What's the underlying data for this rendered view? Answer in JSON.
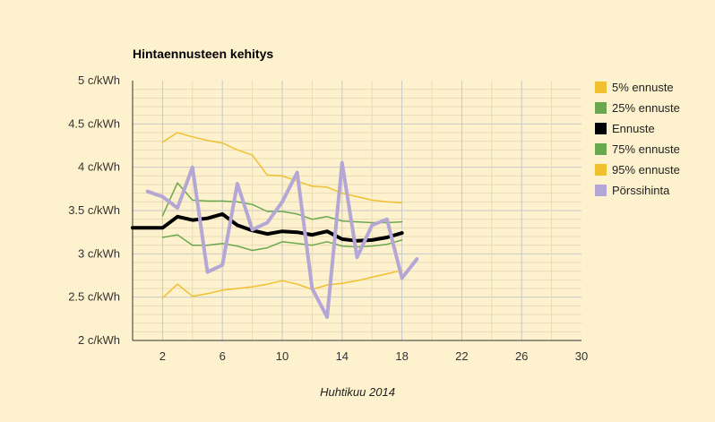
{
  "chart_data": {
    "type": "line",
    "title": "Hintaennusteen kehitys",
    "xlabel": "Huhtikuu 2014",
    "ylabel": "",
    "x_ticks": [
      2,
      6,
      10,
      14,
      18,
      22,
      26,
      30
    ],
    "y_ticks": [
      2,
      2.5,
      3,
      3.5,
      4,
      4.5,
      5
    ],
    "y_tick_labels": [
      "2 c/kWh",
      "2.5 c/kWh",
      "3 c/kWh",
      "3.5 c/kWh",
      "4 c/kWh",
      "4.5 c/kWh",
      "5 c/kWh"
    ],
    "xlim": [
      0,
      30
    ],
    "ylim": [
      2,
      5
    ],
    "grid": true,
    "legend_position": "right",
    "series": [
      {
        "name": "5% ennuste",
        "color": "#f0c030",
        "width": 1.5,
        "x": [
          2,
          3,
          4,
          5,
          6,
          7,
          8,
          9,
          10,
          11,
          12,
          13,
          14,
          15,
          16,
          17,
          18
        ],
        "y": [
          2.49,
          2.65,
          2.51,
          2.54,
          2.58,
          2.6,
          2.62,
          2.65,
          2.69,
          2.65,
          2.59,
          2.64,
          2.66,
          2.69,
          2.73,
          2.77,
          2.81
        ]
      },
      {
        "name": "25% ennuste",
        "color": "#6aa84f",
        "width": 1.5,
        "x": [
          2,
          3,
          4,
          5,
          6,
          7,
          8,
          9,
          10,
          11,
          12,
          13,
          14,
          15,
          16,
          17,
          18
        ],
        "y": [
          3.19,
          3.22,
          3.1,
          3.1,
          3.12,
          3.09,
          3.04,
          3.07,
          3.14,
          3.12,
          3.1,
          3.14,
          3.09,
          3.08,
          3.09,
          3.11,
          3.16
        ]
      },
      {
        "name": "Ennuste",
        "color": "#000000",
        "width": 4,
        "x": [
          0,
          1,
          2,
          3,
          4,
          5,
          6,
          7,
          8,
          9,
          10,
          11,
          12,
          13,
          14,
          15,
          16,
          17,
          18
        ],
        "y": [
          3.3,
          3.3,
          3.3,
          3.43,
          3.39,
          3.41,
          3.46,
          3.33,
          3.27,
          3.23,
          3.26,
          3.25,
          3.22,
          3.26,
          3.17,
          3.15,
          3.16,
          3.19,
          3.24
        ]
      },
      {
        "name": "75% ennuste",
        "color": "#6aa84f",
        "width": 1.5,
        "x": [
          2,
          3,
          4,
          5,
          6,
          7,
          8,
          9,
          10,
          11,
          12,
          13,
          14,
          15,
          16,
          17,
          18
        ],
        "y": [
          3.44,
          3.82,
          3.62,
          3.61,
          3.61,
          3.6,
          3.57,
          3.49,
          3.49,
          3.46,
          3.4,
          3.43,
          3.38,
          3.37,
          3.36,
          3.36,
          3.37
        ]
      },
      {
        "name": "95% ennuste",
        "color": "#f0c030",
        "width": 1.5,
        "x": [
          2,
          3,
          4,
          5,
          6,
          7,
          8,
          9,
          10,
          11,
          12,
          13,
          14,
          15,
          16,
          17,
          18
        ],
        "y": [
          4.29,
          4.4,
          4.35,
          4.31,
          4.28,
          4.2,
          4.14,
          3.91,
          3.9,
          3.84,
          3.78,
          3.77,
          3.7,
          3.66,
          3.62,
          3.6,
          3.59
        ]
      },
      {
        "name": "Pörssihinta",
        "color": "#b4a7d6",
        "width": 4,
        "x": [
          1,
          2,
          3,
          4,
          5,
          6,
          7,
          8,
          9,
          10,
          11,
          12,
          13,
          14,
          15,
          16,
          17,
          18,
          19
        ],
        "y": [
          3.72,
          3.66,
          3.53,
          4.0,
          2.79,
          2.87,
          3.81,
          3.28,
          3.36,
          3.6,
          3.94,
          2.6,
          2.27,
          4.05,
          2.96,
          3.33,
          3.4,
          2.72,
          2.94
        ]
      }
    ]
  }
}
